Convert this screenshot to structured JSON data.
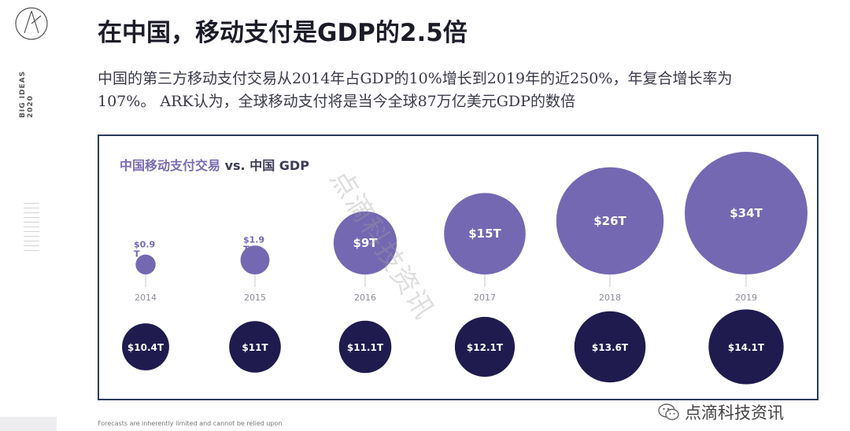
{
  "header": {
    "title": "在中国，移动支付是GDP的2.5倍",
    "subtitle": "中国的第三方移动支付交易从2014年占GDP的10%增长到2019年的近250%，年复合增长率为107%。 ARK认为，全球移动支付将是当今全球87万亿美元GDP的数倍"
  },
  "sidebar": {
    "label_line1": "BIG IDEAS",
    "label_line2": "2020",
    "logo_icon": "ark-logo-icon"
  },
  "chart_title": {
    "part1": "中国移动支付交易",
    "vs": "vs.",
    "part2": "中国 GDP"
  },
  "colors": {
    "mobile": "#7468b2",
    "gdp": "#1f1b4e",
    "frame": "#2a3a5e",
    "year": "#8c8c98"
  },
  "chart_data": {
    "type": "bubble",
    "years": [
      "2014",
      "2015",
      "2016",
      "2017",
      "2018",
      "2019"
    ],
    "series": [
      {
        "name": "中国移动支付交易",
        "unit": "T USD",
        "values": [
          0.9,
          1.9,
          9,
          15,
          26,
          34
        ],
        "labels": [
          "$0.9\nT",
          "$1.9\nT",
          "$9T",
          "$15T",
          "$26T",
          "$34T"
        ]
      },
      {
        "name": "中国 GDP",
        "unit": "T USD",
        "values": [
          10.4,
          11,
          11.1,
          12.1,
          13.6,
          14.1
        ],
        "labels": [
          "$10.4T",
          "$11T",
          "$11.1T",
          "$12.1T",
          "$13.6T",
          "$14.1T"
        ]
      }
    ]
  },
  "watermark": "点滴科技资讯",
  "footnote": "Forecasts are inherently limited and cannot be relied upon",
  "brand": {
    "text": "点滴科技资讯",
    "icon": "wechat-icon"
  }
}
